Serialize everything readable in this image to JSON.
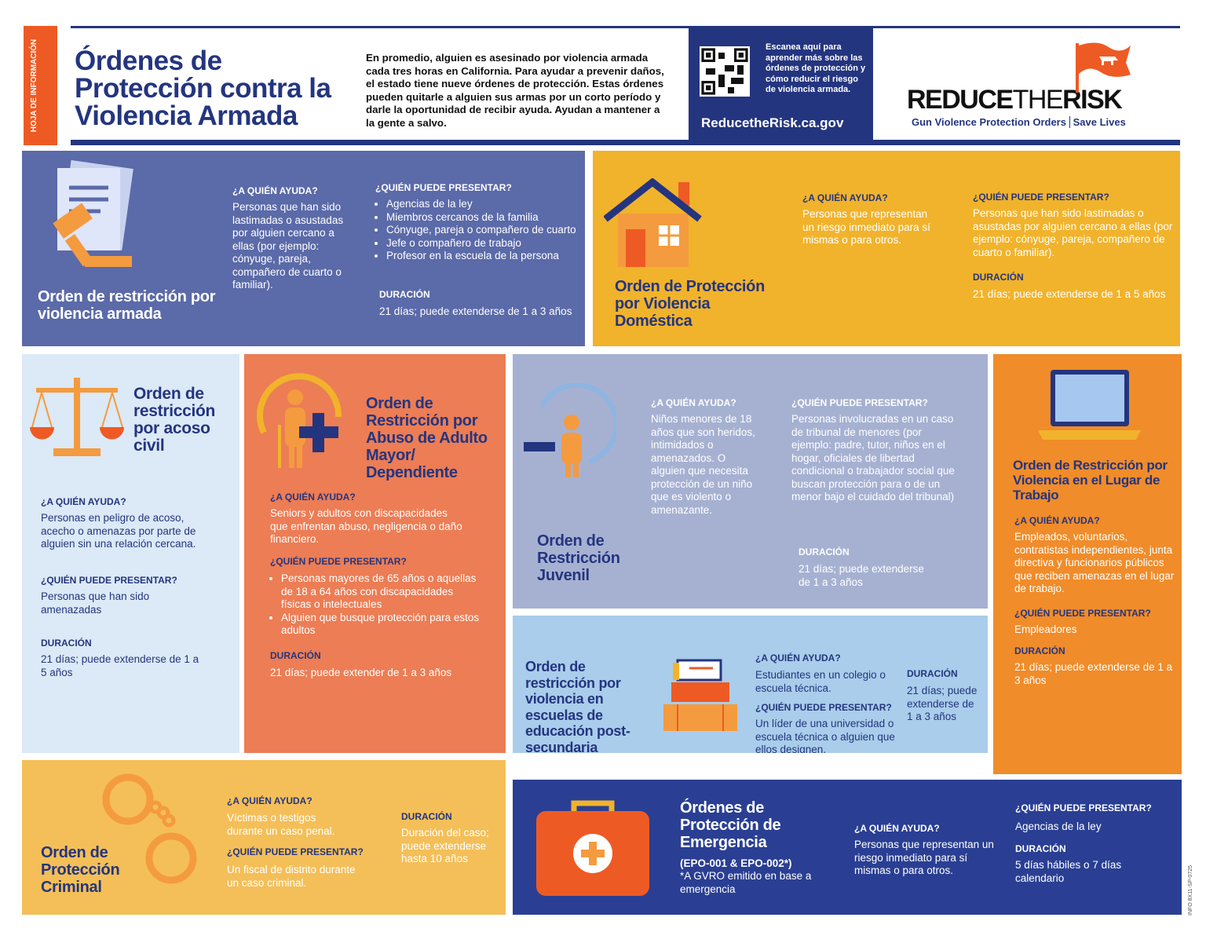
{
  "header": {
    "tag": "HOJA DE INFORMACIÓN",
    "title": "Órdenes de Protección contra la Violencia Armada",
    "intro": "En promedio, alguien es asesinado por violencia armada cada tres horas en California. Para ayudar a prevenir daños, el estado tiene nueve órdenes de protección. Estas órdenes pueden quitarle a alguien sus armas por un corto período y darle la oportunidad de recibir ayuda. Ayudan a mantener a la gente a salvo.",
    "qr_text": "Escanea aquí para aprender más sobre las órdenes de protección y cómo reducir el riesgo de violencia armada.",
    "url": "ReducetheRisk.ca.gov",
    "logo": {
      "reduce": "REDUCE",
      "the": "THE",
      "risk": "RISK"
    },
    "tagline": [
      "Gun Violence Protection Orders",
      "Save Lives"
    ]
  },
  "labels": {
    "help": "¿A QUIÉN AYUDA?",
    "file": "¿QUIÉN PUEDE PRESENTAR?",
    "duration": "DURACIÓN"
  },
  "panels": [
    {
      "title": "Orden de restricción por violencia armada",
      "help": "Personas que han sido lastimadas o asustadas por alguien cercano a ellas (por ejemplo: cónyuge, pareja, compañero de cuarto o familiar).",
      "file": [
        "Agencias de la ley",
        "Miembros cercanos de la familia",
        "Cónyuge, pareja o compañero de cuarto",
        "Jefe o compañero de trabajo",
        "Profesor en la escuela de la persona"
      ],
      "duration": "21 días; puede extenderse de 1 a 3 años"
    },
    {
      "title": "Orden de Protección por Violencia Doméstica",
      "help": "Personas que representan un riesgo inmediato para sí mismas o para otros.",
      "file": "Personas que han sido lastimadas o asustadas por alguien cercano a ellas (por ejemplo: cónyuge, pareja, compañero de cuarto o familiar).",
      "duration": "21 días; puede extenderse de 1 a 5 años"
    },
    {
      "title": "Orden de restricción por acoso civil",
      "help": "Personas en peligro de acoso, acecho o amenazas por parte de alguien sin una relación cercana.",
      "file": "Personas que han sido amenazadas",
      "duration": "21 días; puede extenderse de 1 a 5 años"
    },
    {
      "title": "Orden de Restricción por Abuso de Adulto Mayor/ Dependiente",
      "help": "Seniors y adultos con discapacidades que enfrentan abuso, negligencia o daño financiero.",
      "file": [
        "Personas mayores de 65 años o aquellas de 18 a 64 años con discapacidades físicas o intelectuales",
        "Alguien que busque protección para estos adultos"
      ],
      "duration": "21 días; puede extender de 1 a 3 años"
    },
    {
      "title": "Orden de Restricción Juvenil",
      "help": "Niños menores de 18 años que son heridos, intimidados o amenazados. O alguien que necesita protección de un niño que es violento o amenazante.",
      "file": "Personas involucradas en un caso de tribunal de menores (por ejemplo: padre, tutor, niños en el hogar, oficiales de libertad condicional o trabajador social que buscan protección para o de un menor bajo el cuidado del tribunal)",
      "duration": "21 días; puede extenderse de 1 a 3 años"
    },
    {
      "title": "Orden de Restricción por Violencia en el Lugar de Trabajo",
      "help": "Empleados, voluntarios, contratistas independientes, junta directiva y funcionarios públicos que reciben amenazas en el lugar de trabajo.",
      "file": "Empleadores",
      "duration": "21 días; puede extenderse de 1 a 3 años"
    },
    {
      "title": "Orden de restricción por violencia en escuelas de educación post-secundaria",
      "help": "Estudiantes en un colegio o escuela técnica.",
      "file": "Un líder de una universidad o escuela técnica o alguien que ellos designen.",
      "duration": "21 días; puede extenderse de 1 a 3 años"
    },
    {
      "title": "Orden de Protección Criminal",
      "help": "Víctimas o testigos durante un caso penal.",
      "file": "Un fiscal de distrito durante un caso criminal.",
      "duration": "Duración del caso; puede extenderse hasta 10 años"
    },
    {
      "title": "Órdenes de Protección de Emergencia",
      "subtitle": "(EPO-001 & EPO-002*)",
      "note": "*A GVRO emitido en base a emergencia",
      "help": "Personas que representan un riesgo inmediato para sí mismas o para otros.",
      "file": "Agencias de la ley",
      "duration": "5 días hábiles o 7 días calendario"
    }
  ],
  "footer_code": "INFO 8X11-SP-0725"
}
